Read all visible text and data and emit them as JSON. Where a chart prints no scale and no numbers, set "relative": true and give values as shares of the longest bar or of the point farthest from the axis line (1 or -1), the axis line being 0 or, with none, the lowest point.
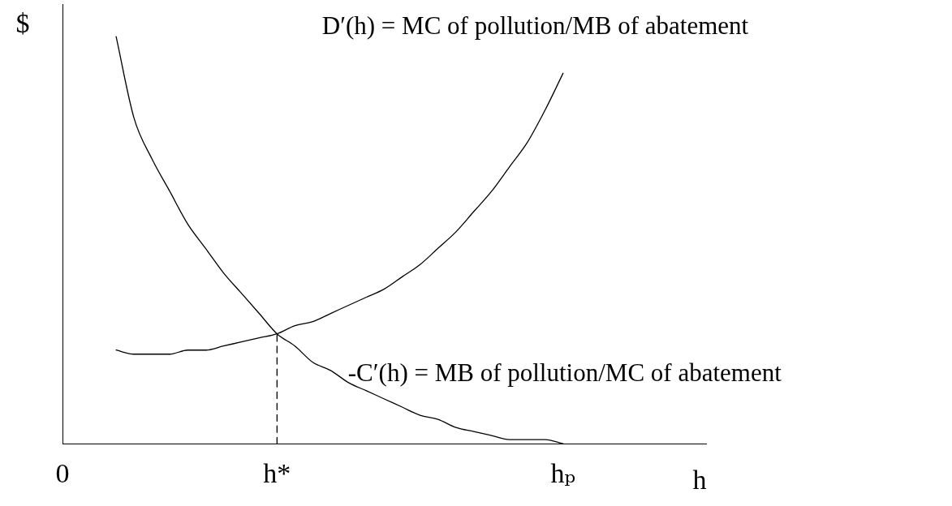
{
  "chart_data": {
    "type": "line",
    "relative": true,
    "xlabel": "h",
    "ylabel": "$",
    "grid": false,
    "legend": false,
    "marker": "none",
    "categories": [
      "0",
      null,
      null,
      null,
      null,
      null,
      null,
      null,
      null,
      null,
      null,
      null,
      "h*",
      null,
      null,
      null,
      null,
      null,
      null,
      null,
      null,
      null,
      null,
      null,
      null,
      null,
      null,
      null,
      "hₚ",
      null,
      null,
      null,
      null,
      null,
      null,
      null,
      null
    ],
    "series": [
      {
        "name": "D′(h) = MC of pollution/MB of abatement",
        "color": "#000000",
        "values": [
          null,
          null,
          null,
          0.23,
          0.22,
          0.22,
          0.22,
          0.23,
          0.23,
          0.24,
          0.25,
          0.26,
          0.27,
          0.29,
          0.3,
          0.32,
          0.34,
          0.36,
          0.38,
          0.41,
          0.44,
          0.48,
          0.52,
          0.57,
          0.62,
          0.68,
          0.74,
          0.82,
          0.91,
          null,
          null,
          null,
          null,
          null,
          null,
          null,
          null
        ]
      },
      {
        "name": "-C′(h) = MB of pollution/MC of abatement",
        "color": "#000000",
        "values": [
          null,
          null,
          null,
          1.0,
          0.8,
          0.7,
          0.62,
          0.54,
          0.48,
          0.42,
          0.37,
          0.32,
          0.27,
          0.24,
          0.2,
          0.18,
          0.15,
          0.13,
          0.11,
          0.09,
          0.07,
          0.06,
          0.04,
          0.03,
          0.02,
          0.01,
          0.01,
          0.01,
          0,
          null,
          null,
          null,
          null,
          null,
          null,
          null,
          null
        ]
      },
      {
        "type": "line",
        "color": "#000000",
        "line_style": "dashed",
        "x": [
          "h*",
          "h*"
        ],
        "values": [
          0,
          0.27
        ]
      }
    ]
  }
}
